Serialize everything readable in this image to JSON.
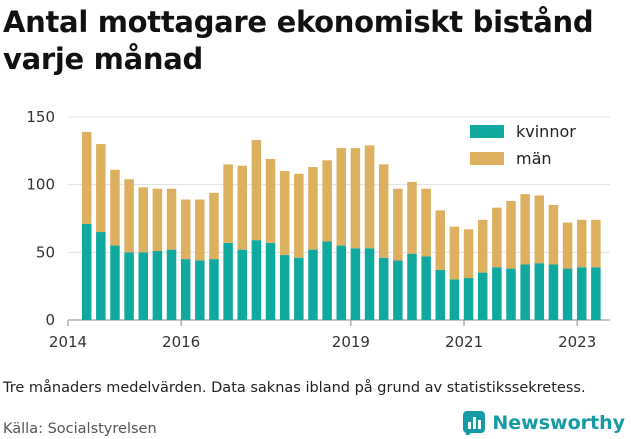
{
  "title": "Antal mottagare ekonomiskt bistånd varje månad",
  "note": "Tre månaders medelvärden. Data saknas ibland på grund av statistikssekretess.",
  "source": "Källa: Socialstyrelsen",
  "brand": {
    "name": "Newsworthy",
    "icon": "bar-chart-logo-icon",
    "color": "#159aa6"
  },
  "chart_data": {
    "type": "bar",
    "stacked": true,
    "xlim": [
      2014.0,
      2023.58
    ],
    "ylim": [
      0,
      150
    ],
    "x_ticks": [
      2014,
      2016,
      2019,
      2021,
      2023
    ],
    "y_ticks": [
      0,
      50,
      100,
      150
    ],
    "grid": true,
    "legend_position": "top-right",
    "x": [
      2014.33,
      2014.58,
      2014.83,
      2015.08,
      2015.33,
      2015.58,
      2015.83,
      2016.08,
      2016.33,
      2016.58,
      2016.83,
      2017.08,
      2017.33,
      2017.58,
      2017.83,
      2018.08,
      2018.33,
      2018.58,
      2018.83,
      2019.08,
      2019.33,
      2019.58,
      2019.83,
      2020.08,
      2020.33,
      2020.58,
      2020.83,
      2021.08,
      2021.33,
      2021.58,
      2021.83,
      2022.08,
      2022.33,
      2022.58,
      2022.83,
      2023.08,
      2023.33
    ],
    "series": [
      {
        "name": "kvinnor",
        "color": "#10a99f",
        "values": [
          71,
          65,
          55,
          50,
          50,
          51,
          52,
          45,
          44,
          45,
          57,
          52,
          59,
          57,
          48,
          46,
          52,
          58,
          55,
          53,
          53,
          46,
          44,
          49,
          47,
          37,
          30,
          31,
          35,
          39,
          38,
          41,
          42,
          41,
          38,
          39,
          39
        ]
      },
      {
        "name": "män",
        "color": "#dcb05e",
        "values": [
          68,
          65,
          56,
          54,
          48,
          46,
          45,
          44,
          45,
          49,
          58,
          62,
          74,
          62,
          62,
          62,
          61,
          60,
          72,
          74,
          76,
          69,
          53,
          53,
          50,
          44,
          39,
          36,
          39,
          44,
          50,
          52,
          50,
          44,
          34,
          35,
          35
        ]
      }
    ]
  }
}
